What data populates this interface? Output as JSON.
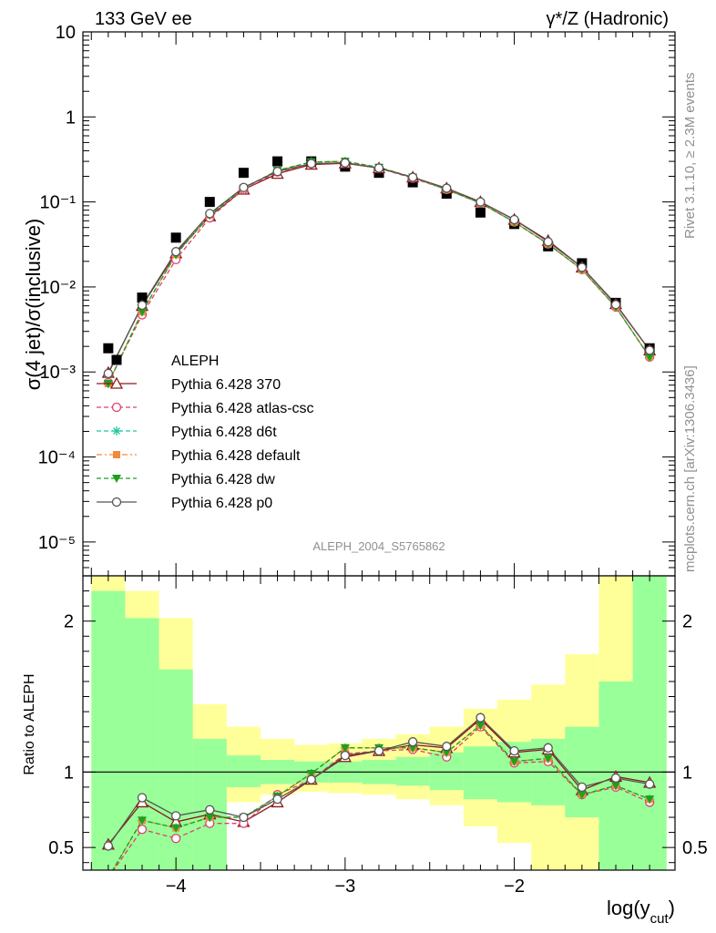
{
  "header": {
    "left": "133 GeV ee",
    "right": "γ*/Z (Hadronic)"
  },
  "side_text": {
    "top": "Rivet 3.1.10, ≥ 2.3M events",
    "bottom": "mcplots.cern.ch [arXiv:1306.3436]"
  },
  "watermark": "ALEPH_2004_S5765862",
  "colors": {
    "band_inner": "#99ff99",
    "band_outer": "#ffff99",
    "aleph": "#000000",
    "370": "#8b1a1a",
    "atlas-csc": "#e0406a",
    "d6t": "#1fc8a0",
    "default": "#f08a3c",
    "dw": "#1ea01e",
    "p0": "#555555"
  },
  "chart_data": [
    {
      "type": "scatter",
      "panel": "main",
      "ylabel": "σ(4 jet)/σ(inclusive)",
      "y_scale": "log",
      "ylim": [
        4e-06,
        10
      ],
      "xlim": [
        -4.55,
        -1.05
      ],
      "y_ticks": [
        "10⁻⁵",
        "10⁻⁴",
        "10⁻³",
        "10⁻²",
        "10⁻¹",
        "1",
        "10"
      ],
      "x": [
        -4.4,
        -4.2,
        -4.0,
        -3.8,
        -3.6,
        -3.4,
        -3.2,
        -3.0,
        -2.8,
        -2.6,
        -2.4,
        -2.2,
        -2.0,
        -1.8,
        -1.6,
        -1.4,
        -1.2
      ],
      "legend_position": "lower-left",
      "series": [
        {
          "name": "ALEPH",
          "key": "aleph",
          "marker": "square",
          "values": [
            0.0019,
            0.0075,
            0.038,
            0.1,
            0.22,
            0.3,
            0.3,
            0.26,
            0.22,
            0.17,
            0.125,
            0.075,
            0.055,
            0.03,
            0.019,
            0.0065,
            0.0019
          ]
        },
        {
          "name": "Pythia 6.428 370",
          "key": "370",
          "marker": "triangle",
          "line": "solid",
          "values": [
            0.00098,
            0.006,
            0.025,
            0.068,
            0.14,
            0.215,
            0.275,
            0.285,
            0.25,
            0.195,
            0.145,
            0.1,
            0.062,
            0.035,
            0.017,
            0.0063,
            0.0018
          ]
        },
        {
          "name": "Pythia 6.428 atlas-csc",
          "key": "atlas-csc",
          "marker": "circle-open",
          "line": "dashed",
          "values": [
            0.00075,
            0.0047,
            0.021,
            0.065,
            0.14,
            0.225,
            0.28,
            0.29,
            0.25,
            0.19,
            0.14,
            0.097,
            0.058,
            0.032,
            0.016,
            0.0058,
            0.0015
          ]
        },
        {
          "name": "Pythia 6.428 d6t",
          "key": "d6t",
          "marker": "asterisk",
          "line": "dashed",
          "values": [
            0.00073,
            0.0051,
            0.024,
            0.07,
            0.145,
            0.235,
            0.295,
            0.3,
            0.255,
            0.195,
            0.14,
            0.097,
            0.058,
            0.032,
            0.016,
            0.0058,
            0.0015
          ]
        },
        {
          "name": "Pythia 6.428 default",
          "key": "default",
          "marker": "square-small",
          "line": "dashdot",
          "values": [
            0.00073,
            0.0051,
            0.024,
            0.07,
            0.145,
            0.235,
            0.295,
            0.3,
            0.255,
            0.195,
            0.14,
            0.097,
            0.058,
            0.032,
            0.016,
            0.0058,
            0.0015
          ]
        },
        {
          "name": "Pythia 6.428 dw",
          "key": "dw",
          "marker": "triangle-down",
          "line": "dashed",
          "values": [
            0.00073,
            0.0051,
            0.024,
            0.07,
            0.145,
            0.235,
            0.295,
            0.3,
            0.255,
            0.195,
            0.14,
            0.097,
            0.058,
            0.032,
            0.016,
            0.0058,
            0.0015
          ]
        },
        {
          "name": "Pythia 6.428 p0",
          "key": "p0",
          "marker": "circle-open",
          "line": "solid",
          "values": [
            0.00096,
            0.0061,
            0.026,
            0.073,
            0.148,
            0.228,
            0.283,
            0.288,
            0.25,
            0.195,
            0.145,
            0.1,
            0.062,
            0.034,
            0.017,
            0.0062,
            0.0018
          ]
        }
      ]
    },
    {
      "type": "line",
      "panel": "ratio",
      "ylabel": "Ratio to ALEPH",
      "xlabel": "log(y",
      "xlabel_sub": "cut",
      "xlabel_end": ")",
      "ylim": [
        0.35,
        2.3
      ],
      "xlim": [
        -4.55,
        -1.05
      ],
      "y_ticks": [
        0.5,
        1,
        2
      ],
      "x_ticks": [
        -4,
        -3,
        -2
      ],
      "reference_line": 1,
      "bands": {
        "edges": [
          -4.5,
          -4.3,
          -4.1,
          -3.9,
          -3.7,
          -3.5,
          -3.3,
          -3.1,
          -2.9,
          -2.7,
          -2.5,
          -2.3,
          -2.1,
          -1.9,
          -1.7,
          -1.5,
          -1.3,
          -1.1
        ],
        "inner_lo": [
          0.35,
          0.35,
          0.35,
          0.35,
          0.9,
          0.92,
          0.93,
          0.93,
          0.92,
          0.91,
          0.88,
          0.82,
          0.8,
          0.78,
          0.7,
          0.35,
          0.35
        ],
        "inner_hi": [
          2.2,
          2.02,
          1.68,
          1.22,
          1.11,
          1.08,
          1.07,
          1.07,
          1.08,
          1.1,
          1.13,
          1.17,
          1.2,
          1.22,
          1.3,
          1.6,
          2.3
        ],
        "outer_lo": [
          0.35,
          0.35,
          0.35,
          0.35,
          0.8,
          0.85,
          0.87,
          0.86,
          0.85,
          0.82,
          0.78,
          0.64,
          0.53,
          0.35,
          0.35,
          0.35,
          0.35
        ],
        "outer_hi": [
          2.3,
          2.2,
          2.02,
          1.45,
          1.3,
          1.22,
          1.18,
          1.19,
          1.22,
          1.25,
          1.3,
          1.42,
          1.48,
          1.58,
          1.78,
          2.3,
          2.3
        ]
      },
      "series": [
        {
          "name": "Pythia 6.428 370",
          "key": "370",
          "values": [
            0.52,
            0.8,
            0.67,
            0.72,
            0.67,
            0.8,
            0.95,
            1.1,
            1.14,
            1.18,
            1.16,
            1.35,
            1.13,
            1.15,
            0.88,
            0.97,
            0.93
          ]
        },
        {
          "name": "Pythia 6.428 atlas-csc",
          "key": "atlas-csc",
          "values": [
            0.3,
            0.62,
            0.56,
            0.66,
            0.66,
            0.85,
            0.95,
            1.12,
            1.14,
            1.15,
            1.1,
            1.3,
            1.06,
            1.07,
            0.85,
            0.9,
            0.8
          ]
        },
        {
          "name": "Pythia 6.428 d6t",
          "key": "d6t",
          "values": [
            0.3,
            0.68,
            0.63,
            0.7,
            0.7,
            0.84,
            0.99,
            1.16,
            1.16,
            1.16,
            1.13,
            1.31,
            1.07,
            1.09,
            0.85,
            0.91,
            0.82
          ]
        },
        {
          "name": "Pythia 6.428 default",
          "key": "default",
          "values": [
            0.3,
            0.68,
            0.63,
            0.7,
            0.7,
            0.84,
            0.99,
            1.16,
            1.16,
            1.16,
            1.13,
            1.31,
            1.07,
            1.09,
            0.85,
            0.91,
            0.82
          ]
        },
        {
          "name": "Pythia 6.428 dw",
          "key": "dw",
          "values": [
            0.3,
            0.68,
            0.63,
            0.7,
            0.7,
            0.84,
            0.99,
            1.16,
            1.16,
            1.16,
            1.13,
            1.31,
            1.07,
            1.09,
            0.85,
            0.91,
            0.82
          ]
        },
        {
          "name": "Pythia 6.428 p0",
          "key": "p0",
          "values": [
            0.51,
            0.83,
            0.71,
            0.75,
            0.7,
            0.82,
            0.95,
            1.11,
            1.14,
            1.2,
            1.17,
            1.36,
            1.14,
            1.16,
            0.9,
            0.96,
            0.92
          ]
        }
      ]
    }
  ]
}
